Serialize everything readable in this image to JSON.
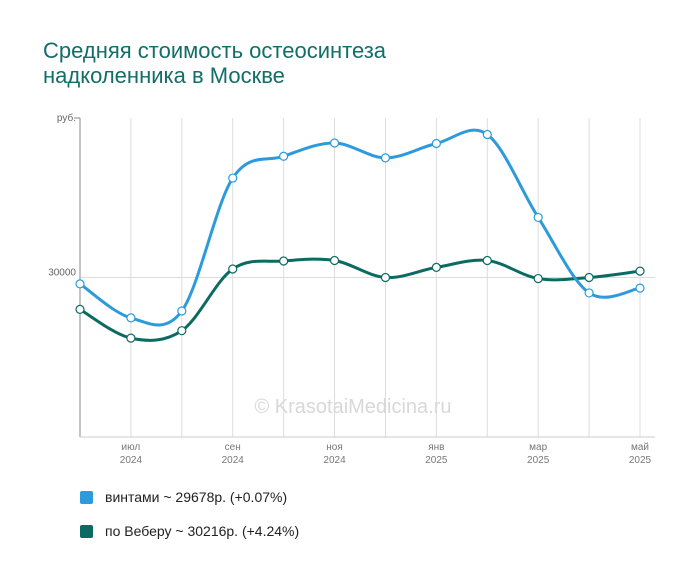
{
  "title_lines": [
    "Средняя стоимость остеосинтеза",
    "надколенника в Москве"
  ],
  "watermark": "© KrasotaiMedicina.ru",
  "legend": [
    {
      "text": "винтами ~ 29678р. (+0.07%)",
      "color": "#2d9bdb"
    },
    {
      "text": "по Веберу ~ 30216р. (+4.24%)",
      "color": "#0b6b62"
    }
  ],
  "chart_data": {
    "type": "line",
    "ylabel": "руб.",
    "y_tick_labels": [
      "30000"
    ],
    "ylim": [
      0,
      60000
    ],
    "x": [
      "2024-06",
      "2024-07",
      "2024-08",
      "2024-09",
      "2024-10",
      "2024-11",
      "2024-12",
      "2025-01",
      "2025-02",
      "2025-03",
      "2025-04",
      "2025-05"
    ],
    "x_tick_labels": [
      {
        "month": "июл",
        "year": "2024",
        "index": 1
      },
      {
        "month": "сен",
        "year": "2024",
        "index": 3
      },
      {
        "month": "ноя",
        "year": "2024",
        "index": 5
      },
      {
        "month": "янв",
        "year": "2025",
        "index": 7
      },
      {
        "month": "мар",
        "year": "2025",
        "index": 9
      },
      {
        "month": "май",
        "year": "2025",
        "index": 11
      }
    ],
    "grid": true,
    "legend_position": "bottom",
    "series": [
      {
        "name": "винтами",
        "color": "#2d9bdb",
        "values": [
          28800,
          22400,
          23700,
          48700,
          52800,
          55300,
          52500,
          55200,
          56900,
          41300,
          27100,
          28000
        ]
      },
      {
        "name": "по Веберу",
        "color": "#0b6b62",
        "values": [
          24000,
          18600,
          20000,
          31600,
          33100,
          33200,
          30000,
          31900,
          33200,
          29800,
          30000,
          31200
        ]
      }
    ]
  }
}
